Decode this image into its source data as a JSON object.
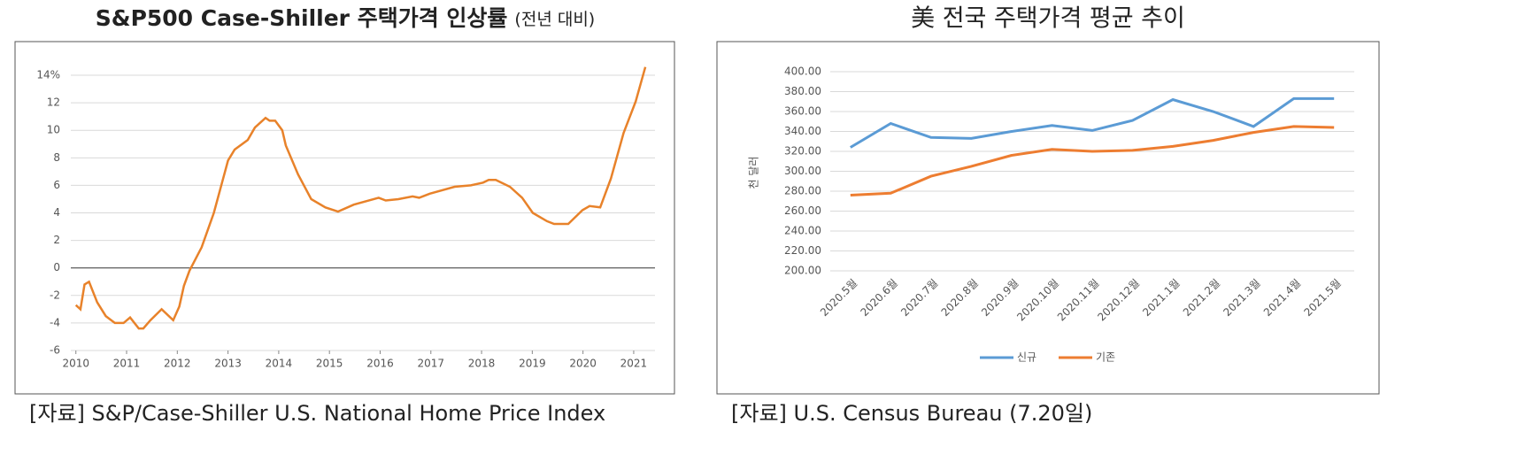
{
  "chart_data": [
    {
      "type": "line",
      "title": "S&P500 Case-Shiller 주택가격 인상률",
      "title_note": "(전년 대비)",
      "source": "[자료] S&P/Case-Shiller U.S. National Home Price Index",
      "color": "#e8822a",
      "x": [
        2010.0,
        2010.09,
        2010.17,
        2010.26,
        2010.42,
        2010.59,
        2010.77,
        2010.94,
        2011.07,
        2011.24,
        2011.33,
        2011.47,
        2011.69,
        2011.92,
        2012.04,
        2012.13,
        2012.24,
        2012.48,
        2012.72,
        2013.0,
        2013.13,
        2013.39,
        2013.53,
        2013.74,
        2013.82,
        2013.93,
        2014.07,
        2014.14,
        2014.38,
        2014.64,
        2014.92,
        2015.17,
        2015.48,
        2015.97,
        2016.11,
        2016.36,
        2016.64,
        2016.77,
        2016.98,
        2017.47,
        2017.79,
        2018.03,
        2018.14,
        2018.28,
        2018.56,
        2018.8,
        2019.01,
        2019.29,
        2019.43,
        2019.71,
        2019.99,
        2020.13,
        2020.34,
        2020.55,
        2020.8,
        2021.04,
        2021.23
      ],
      "values": [
        -2.7,
        -3.0,
        -1.2,
        -1.0,
        -2.5,
        -3.5,
        -4.0,
        -4.0,
        -3.6,
        -4.4,
        -4.4,
        -3.8,
        -3.0,
        -3.8,
        -2.8,
        -1.3,
        -0.2,
        1.5,
        4.0,
        7.8,
        8.6,
        9.3,
        10.2,
        10.9,
        10.7,
        10.7,
        10.0,
        8.9,
        6.8,
        5.0,
        4.4,
        4.1,
        4.6,
        5.1,
        4.9,
        5.0,
        5.2,
        5.1,
        5.4,
        5.9,
        6.0,
        6.2,
        6.4,
        6.4,
        5.9,
        5.1,
        4.0,
        3.4,
        3.2,
        3.2,
        4.2,
        4.5,
        4.4,
        6.5,
        9.8,
        12.1,
        14.6
      ],
      "xlim": [
        2009.9,
        2021.42
      ],
      "xticks": [
        2010,
        2011,
        2012,
        2013,
        2014,
        2015,
        2016,
        2017,
        2018,
        2019,
        2020,
        2021
      ],
      "ylim": [
        -6,
        15
      ],
      "yticks": [
        -6,
        -4,
        -2,
        0,
        2,
        4,
        6,
        8,
        10,
        12,
        {
          "value": 14,
          "label": "14%"
        }
      ],
      "grid": true
    },
    {
      "type": "line",
      "title": "美 전국 주택가격 평균 추이",
      "source": "[자료] U.S. Census Bureau (7.20일)",
      "y_label": "천 달러",
      "categories": [
        "2020.5월",
        "2020.6월",
        "2020.7월",
        "2020.8월",
        "2020.9월",
        "2020.10월",
        "2020.11월",
        "2020.12월",
        "2021.1월",
        "2021.2월",
        "2021.3월",
        "2021.4월",
        "2021.5월"
      ],
      "series": [
        {
          "name": "신규",
          "color": "#5b9bd5",
          "values": [
            324,
            348,
            334,
            333,
            340,
            346,
            341,
            351,
            372,
            360,
            345,
            373,
            373
          ]
        },
        {
          "name": "기존",
          "color": "#ed7d31",
          "values": [
            276,
            278,
            295,
            305,
            316,
            322,
            320,
            321,
            325,
            331,
            339,
            345,
            344
          ]
        }
      ],
      "ylim": [
        200,
        400
      ],
      "yticks": [
        {
          "value": 200,
          "label": "200.00"
        },
        {
          "value": 220,
          "label": "220.00"
        },
        {
          "value": 240,
          "label": "240.00"
        },
        {
          "value": 260,
          "label": "260.00"
        },
        {
          "value": 280,
          "label": "280.00"
        },
        {
          "value": 300,
          "label": "300.00"
        },
        {
          "value": 320,
          "label": "320.00"
        },
        {
          "value": 340,
          "label": "340.00"
        },
        {
          "value": 360,
          "label": "360.00"
        },
        {
          "value": 380,
          "label": "380.00"
        },
        {
          "value": 400,
          "label": "400.00"
        }
      ],
      "grid": true,
      "legend": "bottom"
    }
  ]
}
